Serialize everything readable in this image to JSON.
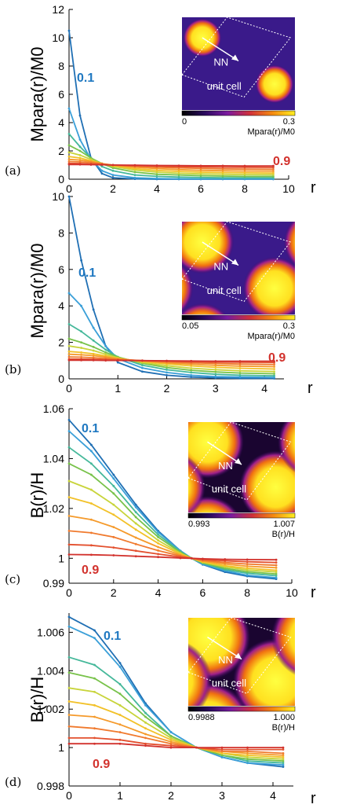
{
  "colors": {
    "series": [
      "#1f6fb4",
      "#3a9fd8",
      "#45b89a",
      "#78c24a",
      "#c8d43a",
      "#f2c128",
      "#f59a2b",
      "#f07a2e",
      "#e3502e",
      "#d2322d"
    ],
    "label_01": "#1f78c1",
    "label_09": "#d2322d"
  },
  "chart_data": [
    {
      "id": "a",
      "type": "line",
      "panel_label": "(a)",
      "ylabel": "Mpara(r)/M0",
      "xlabel": "r",
      "xlim": [
        0,
        10
      ],
      "ylim": [
        0,
        12
      ],
      "xticks": [
        0,
        2,
        4,
        6,
        8,
        10
      ],
      "yticks": [
        0,
        2,
        4,
        6,
        8,
        10,
        12
      ],
      "xtick_labels": [
        "0",
        "2",
        "4",
        "6",
        "8",
        "10"
      ],
      "ytick_labels": [
        "0",
        "2",
        "4",
        "6",
        "8",
        "10",
        "12"
      ],
      "labels": {
        "first": "0.1",
        "last": "0.9"
      },
      "x": [
        0,
        0.5,
        1,
        1.5,
        2,
        3,
        4,
        5,
        6,
        7,
        8,
        9.3
      ],
      "series": [
        {
          "values": [
            10.5,
            4.5,
            1.5,
            0.4,
            0.1,
            0.02,
            0,
            0,
            0,
            0,
            0,
            0
          ]
        },
        {
          "values": [
            5.0,
            2.8,
            1.4,
            0.6,
            0.3,
            0.1,
            0.05,
            0.03,
            0.02,
            0.02,
            0.02,
            0.02
          ]
        },
        {
          "values": [
            3.2,
            2.3,
            1.5,
            0.9,
            0.6,
            0.3,
            0.2,
            0.15,
            0.12,
            0.1,
            0.1,
            0.1
          ]
        },
        {
          "values": [
            2.4,
            2.0,
            1.5,
            1.1,
            0.8,
            0.5,
            0.35,
            0.3,
            0.25,
            0.22,
            0.2,
            0.2
          ]
        },
        {
          "values": [
            1.9,
            1.7,
            1.4,
            1.1,
            0.9,
            0.65,
            0.5,
            0.42,
            0.38,
            0.35,
            0.33,
            0.32
          ]
        },
        {
          "values": [
            1.6,
            1.5,
            1.3,
            1.1,
            0.95,
            0.75,
            0.62,
            0.55,
            0.5,
            0.47,
            0.45,
            0.44
          ]
        },
        {
          "values": [
            1.4,
            1.35,
            1.25,
            1.1,
            1.0,
            0.85,
            0.75,
            0.68,
            0.63,
            0.6,
            0.58,
            0.57
          ]
        },
        {
          "values": [
            1.25,
            1.22,
            1.17,
            1.08,
            1.0,
            0.92,
            0.85,
            0.8,
            0.76,
            0.73,
            0.71,
            0.7
          ]
        },
        {
          "values": [
            1.12,
            1.11,
            1.08,
            1.04,
            1.0,
            0.96,
            0.92,
            0.89,
            0.87,
            0.85,
            0.84,
            0.83
          ]
        },
        {
          "values": [
            1.04,
            1.04,
            1.03,
            1.02,
            1.0,
            0.99,
            0.97,
            0.96,
            0.95,
            0.95,
            0.94,
            0.94
          ]
        }
      ],
      "inset": {
        "nn_label": "NN",
        "cell_label": "unit cell",
        "cb_min": "0",
        "cb_max": "0.3",
        "cb_label": "Mpara(r)/M0",
        "vortex_size": "small"
      }
    },
    {
      "id": "b",
      "type": "line",
      "panel_label": "(b)",
      "ylabel": "Mpara(r)/M0",
      "xlabel": "r",
      "xlim": [
        0,
        4.4
      ],
      "ylim": [
        0,
        10
      ],
      "xticks": [
        0,
        1,
        2,
        3,
        4
      ],
      "yticks": [
        0,
        2,
        4,
        6,
        8,
        10
      ],
      "xtick_labels": [
        "0",
        "1",
        "2",
        "3",
        "4"
      ],
      "ytick_labels": [
        "0",
        "2",
        "4",
        "6",
        "8",
        "10"
      ],
      "labels": {
        "first": "0.1",
        "last": "0.9"
      },
      "x": [
        0,
        0.25,
        0.5,
        0.75,
        1,
        1.5,
        2,
        2.5,
        3,
        3.5,
        4.2
      ],
      "series": [
        {
          "values": [
            10.0,
            6.5,
            3.8,
            1.8,
            0.9,
            0.4,
            0.2,
            0.1,
            0.05,
            0.03,
            0.02
          ]
        },
        {
          "values": [
            4.7,
            4.0,
            2.8,
            1.8,
            1.1,
            0.6,
            0.35,
            0.2,
            0.12,
            0.1,
            0.08
          ]
        },
        {
          "values": [
            3.0,
            2.6,
            2.1,
            1.6,
            1.2,
            0.75,
            0.5,
            0.35,
            0.25,
            0.2,
            0.17
          ]
        },
        {
          "values": [
            2.2,
            2.0,
            1.75,
            1.45,
            1.2,
            0.85,
            0.62,
            0.47,
            0.38,
            0.32,
            0.28
          ]
        },
        {
          "values": [
            1.8,
            1.7,
            1.55,
            1.35,
            1.15,
            0.9,
            0.72,
            0.58,
            0.5,
            0.44,
            0.4
          ]
        },
        {
          "values": [
            1.5,
            1.45,
            1.37,
            1.26,
            1.12,
            0.95,
            0.82,
            0.71,
            0.63,
            0.58,
            0.54
          ]
        },
        {
          "values": [
            1.35,
            1.32,
            1.27,
            1.2,
            1.1,
            0.98,
            0.88,
            0.8,
            0.74,
            0.7,
            0.67
          ]
        },
        {
          "values": [
            1.2,
            1.19,
            1.16,
            1.12,
            1.07,
            1.0,
            0.93,
            0.88,
            0.84,
            0.81,
            0.79
          ]
        },
        {
          "values": [
            1.08,
            1.08,
            1.07,
            1.05,
            1.03,
            1.0,
            0.97,
            0.94,
            0.92,
            0.91,
            0.9
          ]
        },
        {
          "values": [
            1.02,
            1.02,
            1.02,
            1.01,
            1.01,
            1.0,
            0.99,
            0.98,
            0.97,
            0.97,
            0.97
          ]
        }
      ],
      "inset": {
        "nn_label": "NN",
        "cell_label": "unit cell",
        "cb_min": "0.05",
        "cb_max": "0.3",
        "cb_label": "Mpara(r)/M0",
        "vortex_size": "medium"
      }
    },
    {
      "id": "c",
      "type": "line",
      "panel_label": "(c)",
      "ylabel": "B(r)/H",
      "xlabel": "r",
      "xlim": [
        0,
        10
      ],
      "ylim": [
        0.99,
        1.06
      ],
      "xticks": [
        0,
        2,
        4,
        6,
        8,
        10
      ],
      "yticks": [
        0.99,
        1.0,
        1.02,
        1.04,
        1.06
      ],
      "xtick_labels": [
        "0",
        "2",
        "4",
        "6",
        "8",
        "10"
      ],
      "ytick_labels": [
        "0.99",
        "1",
        "1.02",
        "1.04",
        "1.06"
      ],
      "labels": {
        "first": "0.1",
        "last": "0.9"
      },
      "x": [
        0,
        1,
        2,
        3,
        4,
        5,
        5.5,
        6,
        7,
        8,
        9.3
      ],
      "series": [
        {
          "values": [
            1.0555,
            1.0455,
            1.0335,
            1.0215,
            1.011,
            1.003,
            1.0,
            0.9975,
            0.9945,
            0.9928,
            0.9917
          ]
        },
        {
          "values": [
            1.051,
            1.043,
            1.032,
            1.0205,
            1.0105,
            1.003,
            1.0,
            0.9977,
            0.995,
            0.9932,
            0.9922
          ]
        },
        {
          "values": [
            1.0445,
            1.038,
            1.029,
            1.0185,
            1.0095,
            1.0027,
            1.0,
            0.998,
            0.9955,
            0.994,
            0.993
          ]
        },
        {
          "values": [
            1.038,
            1.0335,
            1.026,
            1.0165,
            1.0085,
            1.0024,
            1.0,
            0.9982,
            0.996,
            0.9946,
            0.9937
          ]
        },
        {
          "values": [
            1.031,
            1.0275,
            1.0215,
            1.014,
            1.0072,
            1.002,
            1.0,
            0.9984,
            0.9966,
            0.9953,
            0.9945
          ]
        },
        {
          "values": [
            1.0245,
            1.022,
            1.0175,
            1.0115,
            1.006,
            1.0017,
            1.0,
            0.9986,
            0.997,
            0.996,
            0.9952
          ]
        },
        {
          "values": [
            1.017,
            1.0155,
            1.0125,
            1.0083,
            1.0045,
            1.0013,
            1.0,
            0.9989,
            0.9977,
            0.9968,
            0.9962
          ]
        },
        {
          "values": [
            1.011,
            1.0102,
            1.0085,
            1.0057,
            1.0031,
            1.0009,
            1.0,
            0.9992,
            0.9983,
            0.9977,
            0.9972
          ]
        },
        {
          "values": [
            1.0055,
            1.0052,
            1.0043,
            1.003,
            1.0017,
            1.0005,
            1.0,
            0.9995,
            0.999,
            0.9986,
            0.9983
          ]
        },
        {
          "values": [
            1.0015,
            1.0014,
            1.0012,
            1.0008,
            1.0005,
            1.0001,
            1.0,
            0.9998,
            0.9996,
            0.9995,
            0.9994
          ]
        }
      ],
      "inset": {
        "nn_label": "NN",
        "cell_label": "unit cell",
        "cb_min": "0.993",
        "cb_max": "1.007",
        "cb_label": "B(r)/H",
        "vortex_size": "large"
      }
    },
    {
      "id": "d",
      "type": "line",
      "panel_label": "(d)",
      "ylabel": "B(r)/H",
      "xlabel": "r",
      "xlim": [
        0,
        4.4
      ],
      "ylim": [
        0.998,
        1.007
      ],
      "xticks": [
        0,
        1,
        2,
        3,
        4
      ],
      "yticks": [
        0.998,
        1.0,
        1.002,
        1.004,
        1.006
      ],
      "xtick_labels": [
        "0",
        "1",
        "2",
        "3",
        "4"
      ],
      "ytick_labels": [
        "0.998",
        "1",
        "1.002",
        "1.004",
        "1.006"
      ],
      "labels": {
        "first": "0.1",
        "last": "0.9"
      },
      "x": [
        0,
        0.5,
        1,
        1.5,
        2,
        2.5,
        3,
        3.5,
        4.2
      ],
      "series": [
        {
          "values": [
            1.0068,
            1.0061,
            1.0044,
            1.0023,
            1.0008,
            1.0,
            0.9995,
            0.9992,
            0.999
          ]
        },
        {
          "values": [
            1.0063,
            1.0057,
            1.0042,
            1.0022,
            1.0008,
            1.0,
            0.9995,
            0.9992,
            0.9991
          ]
        },
        {
          "values": [
            1.0047,
            1.0043,
            1.0033,
            1.0018,
            1.0006,
            1.0,
            0.9996,
            0.9993,
            0.9992
          ]
        },
        {
          "values": [
            1.0039,
            1.0036,
            1.0028,
            1.0016,
            1.0006,
            1.0,
            0.9996,
            0.9994,
            0.9993
          ]
        },
        {
          "values": [
            1.0031,
            1.0029,
            1.0022,
            1.0013,
            1.0005,
            1.0,
            0.9997,
            0.9995,
            0.9994
          ]
        },
        {
          "values": [
            1.0024,
            1.0022,
            1.0017,
            1.001,
            1.0004,
            1.0,
            0.9997,
            0.9996,
            0.9995
          ]
        },
        {
          "values": [
            1.0017,
            1.0016,
            1.0012,
            1.0007,
            1.0003,
            1.0,
            0.9998,
            0.9997,
            0.9996
          ]
        },
        {
          "values": [
            1.0011,
            1.001,
            1.0008,
            1.0005,
            1.0002,
            1.0,
            0.9998,
            0.9998,
            0.9997
          ]
        },
        {
          "values": [
            1.0005,
            1.0005,
            1.0004,
            1.0002,
            1.0001,
            1.0,
            0.9999,
            0.9999,
            0.9999
          ]
        },
        {
          "values": [
            1.0002,
            1.0002,
            1.0002,
            1.0001,
            1.0,
            1.0,
            1.0,
            1.0,
            1.0
          ]
        }
      ],
      "inset": {
        "nn_label": "NN",
        "cell_label": "unit cell",
        "cb_min": "0.9988",
        "cb_max": "1.000",
        "cb_label": "B(r)/H",
        "vortex_size": "xlarge"
      }
    }
  ]
}
